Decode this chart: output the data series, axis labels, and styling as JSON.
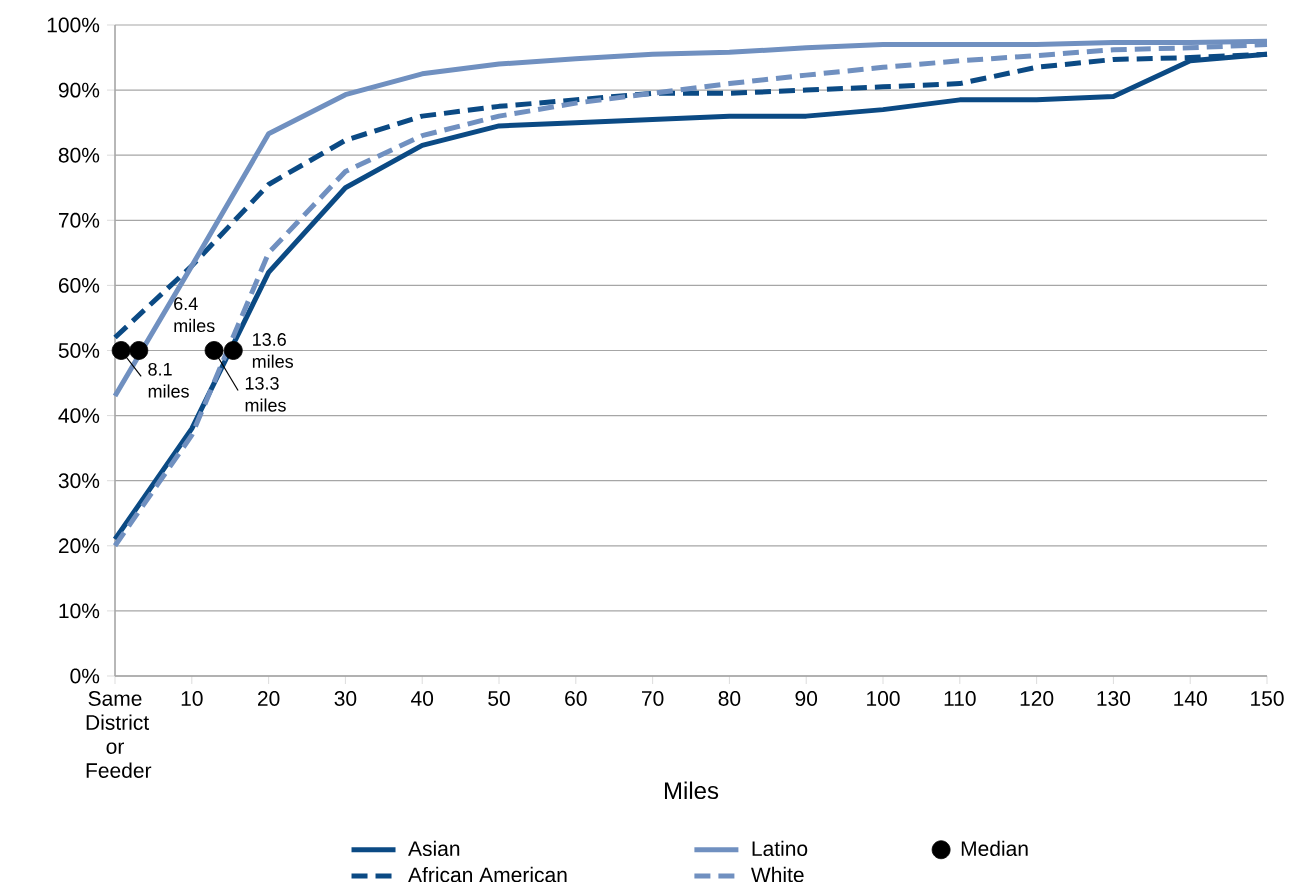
{
  "chart_data": {
    "type": "line",
    "xlabel": "Miles",
    "x": [
      0,
      10,
      20,
      30,
      40,
      50,
      60,
      70,
      80,
      90,
      100,
      110,
      120,
      130,
      140,
      150
    ],
    "series": [
      {
        "name": "Asian",
        "color": "#0b4a84",
        "line_style": "solid",
        "values": [
          21,
          38,
          62,
          75,
          81.5,
          84.5,
          85,
          85.5,
          86,
          86,
          87,
          88.5,
          88.5,
          89,
          94.5,
          95.5
        ]
      },
      {
        "name": "African American",
        "color": "#0b4a84",
        "line_style": "dashed",
        "values": [
          52,
          63,
          75.5,
          82.3,
          86,
          87.5,
          88.5,
          89.5,
          89.5,
          90,
          90.5,
          91,
          93.5,
          94.7,
          95,
          95.5
        ]
      },
      {
        "name": "Latino",
        "color": "#7090c0",
        "line_style": "solid",
        "values": [
          43,
          63,
          83.3,
          89.3,
          92.5,
          94,
          94.8,
          95.5,
          95.8,
          96.5,
          97,
          97,
          97,
          97.3,
          97.3,
          97.5
        ]
      },
      {
        "name": "White",
        "color": "#7090c0",
        "line_style": "dashed",
        "values": [
          20,
          37,
          65,
          77.5,
          83,
          86,
          88,
          89.5,
          91,
          92.3,
          93.5,
          94.5,
          95.3,
          96.2,
          96.5,
          97
        ]
      },
      {
        "name": "Median",
        "type": "scatter",
        "color": "#000000",
        "x": [
          0.8,
          3.1,
          12.9,
          15.4
        ],
        "values": [
          50,
          50,
          50,
          50
        ]
      }
    ],
    "xlim": [
      0,
      150
    ],
    "xticks": [
      {
        "value": 0,
        "label": "Same District or Feeder"
      },
      10,
      20,
      30,
      40,
      50,
      60,
      70,
      80,
      90,
      100,
      110,
      120,
      130,
      140,
      150
    ],
    "ylim": [
      0,
      100
    ],
    "yticks": [
      {
        "value": 0,
        "label": "0%"
      },
      {
        "value": 10,
        "label": "10%"
      },
      {
        "value": 20,
        "label": "20%"
      },
      {
        "value": 30,
        "label": "30%"
      },
      {
        "value": 40,
        "label": "40%"
      },
      {
        "value": 50,
        "label": "50%"
      },
      {
        "value": 60,
        "label": "60%"
      },
      {
        "value": 70,
        "label": "70%"
      },
      {
        "value": 80,
        "label": "80%"
      },
      {
        "value": 90,
        "label": "90%"
      },
      {
        "value": 100,
        "label": "100%"
      }
    ],
    "grid": "y",
    "legend": "bottom",
    "annotations": [
      {
        "text": "6.4 miles",
        "x": 3.1,
        "y": 50
      },
      {
        "text": "8.1 miles",
        "x": 0.8,
        "y": 50
      },
      {
        "text": "13.3 miles",
        "x": 12.9,
        "y": 50
      },
      {
        "text": "13.6 miles",
        "x": 15.4,
        "y": 50
      }
    ]
  }
}
